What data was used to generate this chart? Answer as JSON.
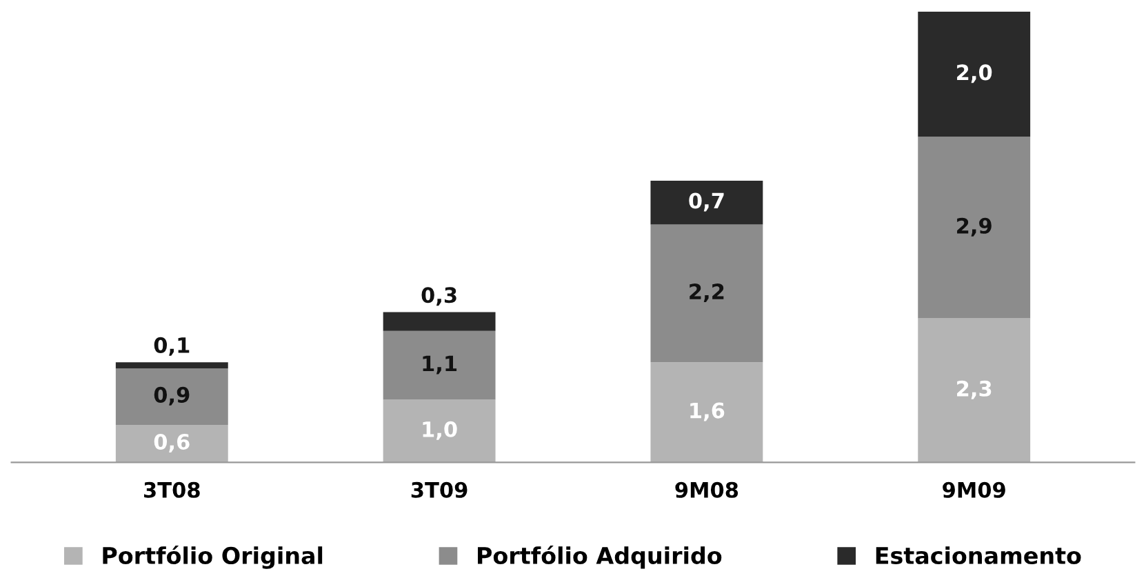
{
  "chart_data": {
    "type": "bar",
    "stacked": true,
    "categories": [
      "3T08",
      "3T09",
      "9M08",
      "9M09"
    ],
    "series": [
      {
        "name": "Portfólio Original",
        "color": "#b4b4b4",
        "values": [
          0.6,
          1.0,
          1.6,
          2.3
        ],
        "value_labels": [
          "0,6",
          "1,0",
          "1,6",
          "2,3"
        ]
      },
      {
        "name": "Portfólio Adquirido",
        "color": "#8c8c8c",
        "values": [
          0.9,
          1.1,
          2.2,
          2.9
        ],
        "value_labels": [
          "0,9",
          "1,1",
          "2,2",
          "2,9"
        ]
      },
      {
        "name": "Estacionamento",
        "color": "#2a2a2a",
        "values": [
          0.1,
          0.3,
          0.7,
          2.0
        ],
        "value_labels": [
          "0,1",
          "0,3",
          "0,7",
          "2,0"
        ]
      }
    ],
    "legend": "bottom",
    "grid": false
  }
}
